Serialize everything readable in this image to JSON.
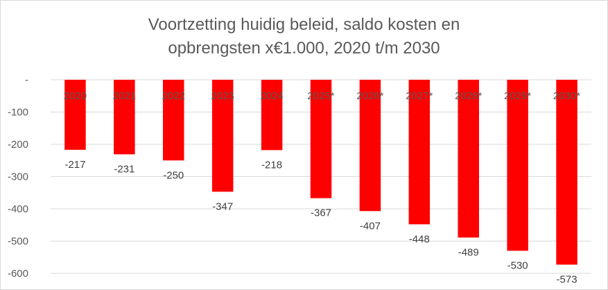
{
  "chart_data": {
    "type": "bar",
    "title_lines": [
      "Voortzetting huidig beleid, saldo kosten en",
      "opbrengsten x€1.000,  2020 t/m 2030"
    ],
    "categories": [
      "2020",
      "2021",
      "2022",
      "2023",
      "2024",
      "2025*",
      "2026*",
      "2027*",
      "2028*",
      "2029*",
      "2030*"
    ],
    "values": [
      -217,
      -231,
      -250,
      -347,
      -218,
      -367,
      -407,
      -448,
      -489,
      -530,
      -573
    ],
    "value_labels": [
      "-217",
      "-231",
      "-250",
      "-347",
      "-218",
      "-367",
      "-407",
      "-448",
      "-489",
      "-530",
      "-573"
    ],
    "y_ticks": [
      0,
      -100,
      -200,
      -300,
      -400,
      -500,
      -600
    ],
    "y_tick_labels": [
      "-",
      "-100",
      "-200",
      "-300",
      "-400",
      "-500",
      "-600"
    ],
    "ylim": [
      -600,
      0
    ],
    "grid": true,
    "bar_color": "#ff0000",
    "xlabel": "",
    "ylabel": ""
  }
}
